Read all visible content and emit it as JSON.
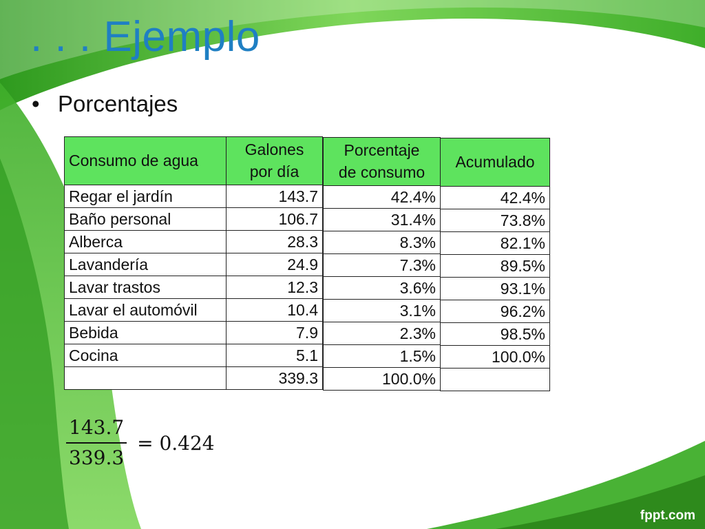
{
  "slide": {
    "title": ". . . Ejemplo",
    "bullet": "Porcentajes",
    "logo": "fppt.com"
  },
  "colors": {
    "title": "#1f7fc3",
    "header_fill": "#5ee35e",
    "swoosh_green": "#3fae2a"
  },
  "table_main": {
    "headers": [
      "Consumo de agua",
      "Galones\npor día"
    ],
    "rows": [
      {
        "label": "Regar el jardín",
        "value": "143.7"
      },
      {
        "label": "Baño personal",
        "value": "106.7"
      },
      {
        "label": "Alberca",
        "value": "28.3"
      },
      {
        "label": "Lavandería",
        "value": "24.9"
      },
      {
        "label": "Lavar trastos",
        "value": "12.3"
      },
      {
        "label": "Lavar el automóvil",
        "value": "10.4"
      },
      {
        "label": "Bebida",
        "value": "7.9"
      },
      {
        "label": "Cocina",
        "value": "5.1"
      },
      {
        "label": "",
        "value": "339.3"
      }
    ]
  },
  "table_pct": {
    "header": "Porcentaje\nde consumo",
    "rows": [
      "42.4%",
      "31.4%",
      "8.3%",
      "7.3%",
      "3.6%",
      "3.1%",
      "2.3%",
      "1.5%",
      "100.0%"
    ]
  },
  "table_acc": {
    "header": "Acumulado",
    "rows": [
      "42.4%",
      "73.8%",
      "82.1%",
      "89.5%",
      "93.1%",
      "96.2%",
      "98.5%",
      "100.0%",
      ""
    ]
  },
  "formula": {
    "numerator": "143.7",
    "denominator": "339.3",
    "result": "= 0.424"
  }
}
